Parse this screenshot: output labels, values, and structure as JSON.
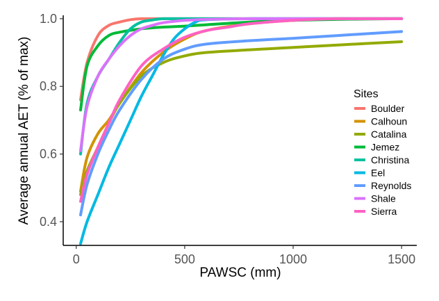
{
  "chart_data": {
    "type": "line",
    "xlabel": "PAWSC (mm)",
    "ylabel": "Average annual AET (% of max)",
    "xlim": [
      0,
      1500
    ],
    "ylim": [
      0.33,
      1.01
    ],
    "xticks": [
      0,
      500,
      1000,
      1500
    ],
    "yticks": [
      0.4,
      0.6,
      0.8,
      1.0
    ],
    "ytick_labels": [
      "0.4",
      "0.6",
      "0.8",
      "1.0"
    ],
    "grid": false,
    "legend": {
      "title": "Sites",
      "placement": "right"
    },
    "series": [
      {
        "name": "Boulder",
        "color": "#F8766D",
        "x": [
          20,
          50,
          100,
          150,
          200,
          250,
          300,
          400,
          500,
          1000,
          1500
        ],
        "y": [
          0.76,
          0.87,
          0.95,
          0.98,
          0.99,
          0.997,
          1.0,
          1.0,
          1.0,
          1.0,
          1.0
        ]
      },
      {
        "name": "Calhoun",
        "color": "#D39200",
        "x": [
          20,
          50,
          100,
          150,
          200,
          300,
          400,
          500,
          600,
          800,
          1000,
          1200,
          1500
        ],
        "y": [
          0.49,
          0.59,
          0.66,
          0.7,
          0.75,
          0.84,
          0.9,
          0.94,
          0.965,
          0.985,
          0.995,
          1.0,
          1.0
        ]
      },
      {
        "name": "Catalina",
        "color": "#93AA00",
        "x": [
          20,
          50,
          100,
          150,
          200,
          300,
          400,
          500,
          600,
          800,
          1000,
          1200,
          1500
        ],
        "y": [
          0.48,
          0.55,
          0.62,
          0.69,
          0.75,
          0.83,
          0.87,
          0.89,
          0.9,
          0.908,
          0.915,
          0.922,
          0.932
        ]
      },
      {
        "name": "Jemez",
        "color": "#00BA38",
        "x": [
          20,
          50,
          100,
          150,
          200,
          300,
          400,
          500,
          600,
          800,
          1000,
          1200,
          1500
        ],
        "y": [
          0.73,
          0.86,
          0.92,
          0.95,
          0.96,
          0.97,
          0.975,
          0.978,
          0.982,
          0.99,
          0.995,
          0.998,
          1.0
        ]
      },
      {
        "name": "Christina",
        "color": "#00C19F",
        "x": [
          20,
          50,
          100,
          150,
          200,
          250,
          300,
          350,
          400,
          500,
          600,
          800,
          1000,
          1500
        ],
        "y": [
          0.6,
          0.75,
          0.83,
          0.88,
          0.93,
          0.97,
          0.99,
          0.996,
          1.0,
          1.0,
          1.0,
          1.0,
          1.0,
          1.0
        ]
      },
      {
        "name": "Eel",
        "color": "#00B9E3",
        "x": [
          20,
          50,
          100,
          150,
          200,
          250,
          300,
          350,
          400,
          450,
          500,
          550,
          600,
          800,
          1000,
          1500
        ],
        "y": [
          0.335,
          0.4,
          0.48,
          0.56,
          0.63,
          0.7,
          0.77,
          0.83,
          0.89,
          0.94,
          0.97,
          0.99,
          0.997,
          1.0,
          1.0,
          1.0
        ]
      },
      {
        "name": "Reynolds",
        "color": "#619CFF",
        "x": [
          20,
          50,
          100,
          150,
          200,
          300,
          400,
          500,
          600,
          800,
          1000,
          1200,
          1500
        ],
        "y": [
          0.42,
          0.51,
          0.6,
          0.67,
          0.73,
          0.82,
          0.88,
          0.91,
          0.925,
          0.935,
          0.942,
          0.95,
          0.962
        ]
      },
      {
        "name": "Shale",
        "color": "#DB72FB",
        "x": [
          20,
          50,
          100,
          150,
          200,
          250,
          300,
          350,
          400,
          500,
          600,
          800,
          1000,
          1500
        ],
        "y": [
          0.61,
          0.74,
          0.83,
          0.88,
          0.92,
          0.95,
          0.97,
          0.98,
          0.988,
          0.995,
          0.998,
          1.0,
          1.0,
          1.0
        ]
      },
      {
        "name": "Sierra",
        "color": "#FF61C3",
        "x": [
          20,
          50,
          100,
          150,
          200,
          300,
          400,
          500,
          600,
          700,
          800,
          1000,
          1200,
          1500
        ],
        "y": [
          0.46,
          0.54,
          0.62,
          0.69,
          0.76,
          0.86,
          0.91,
          0.945,
          0.965,
          0.975,
          0.985,
          0.995,
          1.0,
          1.0
        ]
      }
    ]
  }
}
